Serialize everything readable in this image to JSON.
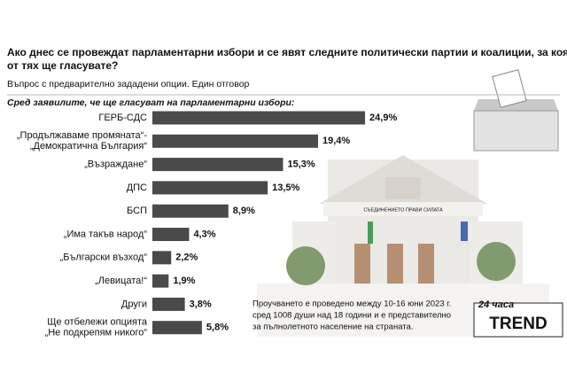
{
  "chart_data": {
    "type": "bar",
    "title": [
      "Ако днес се провеждат парламентарни избори и се явят следните политически партии и коалиции, за коя",
      "от тях ще гласувате?"
    ],
    "subtitle": "Въпрос с предварително зададени опции. Един отговор",
    "section_label": "Сред заявилите, че ще гласуват на парламентарни избори:",
    "categories": [
      [
        "ГЕРБ-СДС"
      ],
      [
        "„Продължаваме промяната“-",
        "„Демократична България“"
      ],
      [
        "„Възраждане“"
      ],
      [
        "ДПС"
      ],
      [
        "БСП"
      ],
      [
        "„Има такъв народ“"
      ],
      [
        "„Български възход“"
      ],
      [
        "„Левицата!“"
      ],
      [
        "Други"
      ],
      [
        "Ще отбележи опцията",
        "„Не подкрепям никого“"
      ]
    ],
    "values": [
      24.9,
      19.4,
      15.3,
      13.5,
      8.9,
      4.3,
      2.2,
      1.9,
      3.8,
      5.8
    ],
    "value_labels": [
      "24,9%",
      "19,4%",
      "15,3%",
      "13,5%",
      "8,9%",
      "4,3%",
      "2,2%",
      "1,9%",
      "3,8%",
      "5,8%"
    ],
    "color": "#4a4a4a",
    "footnote": [
      "Проучването е проведено между 10-16 юни 2023 г.",
      "сред 1008 души над 18 години и е представително",
      "за пълнолетното население на страната."
    ],
    "logo": [
      "24 часа",
      "TREND"
    ],
    "building_sign": "СЪЕДИНЕНИЕТО ПРАВИ СИЛАТА"
  }
}
